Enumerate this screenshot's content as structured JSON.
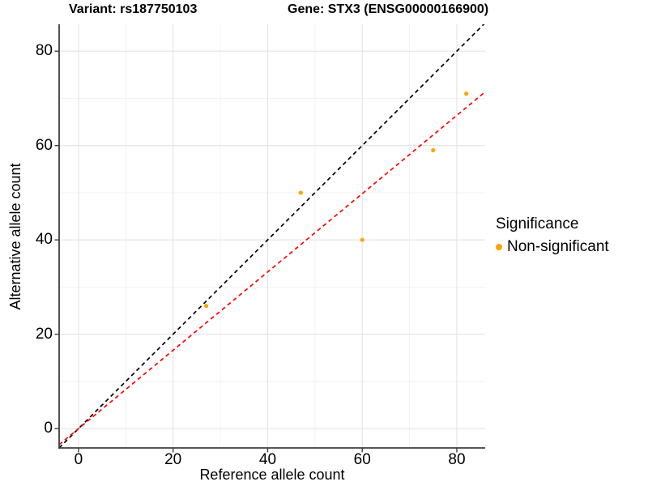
{
  "titles": {
    "variant": "Variant: rs187750103",
    "gene": "Gene: STX3 (ENSG00000166900)"
  },
  "legend": {
    "title": "Significance",
    "items": [
      {
        "label": "Non-significant",
        "color": "#FFA500"
      }
    ]
  },
  "chart_data": {
    "type": "scatter",
    "title": "Variant: rs187750103 / Gene: STX3 (ENSG00000166900)",
    "xlabel": "Reference allele count",
    "ylabel": "Alternative allele count",
    "xlim": [
      -4.1,
      86.0
    ],
    "ylim": [
      -4.1,
      85.7
    ],
    "x_ticks": [
      0,
      20,
      40,
      60,
      80
    ],
    "y_ticks": [
      0,
      20,
      40,
      60,
      80
    ],
    "x_minor_ticks": [
      10,
      30,
      50,
      70
    ],
    "y_minor_ticks": [
      10,
      30,
      50,
      70
    ],
    "grid": "major+minor",
    "legend_position": "right",
    "series": [
      {
        "name": "Non-significant",
        "marker": "circle",
        "color": "#FFA500",
        "points": [
          {
            "x": 27,
            "y": 26
          },
          {
            "x": 47,
            "y": 50
          },
          {
            "x": 60,
            "y": 40
          },
          {
            "x": 75,
            "y": 59
          },
          {
            "x": 82,
            "y": 71
          }
        ]
      }
    ],
    "reference_lines": [
      {
        "name": "identity_line",
        "equation": "y = x",
        "slope": 1,
        "intercept": 0,
        "color": "#000000",
        "style": "dashed"
      },
      {
        "name": "fit_line",
        "equation": "y = 0.83x",
        "slope": 0.83,
        "intercept": 0,
        "color": "#FF0000",
        "style": "dashed"
      }
    ],
    "colors": {
      "point": "#FFA500",
      "grid_major": "#E3E3E3",
      "grid_minor": "#F1F1F1",
      "axis_line": "#3F3F3F"
    }
  }
}
